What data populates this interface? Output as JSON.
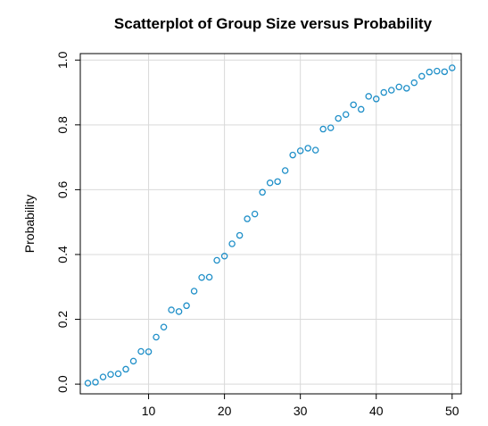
{
  "chart_data": {
    "type": "scatter",
    "title": "Scatterplot of Group Size versus Probability",
    "xlabel": "",
    "ylabel": "Probability",
    "xlim": [
      1,
      51.2
    ],
    "ylim": [
      -0.03,
      1.02
    ],
    "xticks": [
      10,
      20,
      30,
      40,
      50
    ],
    "yticks": [
      0.0,
      0.2,
      0.4,
      0.6,
      0.8,
      1.0
    ],
    "xtick_labels": [
      "10",
      "20",
      "30",
      "40",
      "50"
    ],
    "ytick_labels": [
      "0.0",
      "0.2",
      "0.4",
      "0.6",
      "0.8",
      "1.0"
    ],
    "grid": true,
    "point_color": "#1f8fc8",
    "points": [
      {
        "x": 2,
        "y": 0.003
      },
      {
        "x": 3,
        "y": 0.006
      },
      {
        "x": 4,
        "y": 0.022
      },
      {
        "x": 5,
        "y": 0.03
      },
      {
        "x": 6,
        "y": 0.032
      },
      {
        "x": 7,
        "y": 0.046
      },
      {
        "x": 8,
        "y": 0.071
      },
      {
        "x": 9,
        "y": 0.101
      },
      {
        "x": 10,
        "y": 0.1
      },
      {
        "x": 11,
        "y": 0.145
      },
      {
        "x": 12,
        "y": 0.176
      },
      {
        "x": 13,
        "y": 0.229
      },
      {
        "x": 14,
        "y": 0.224
      },
      {
        "x": 15,
        "y": 0.242
      },
      {
        "x": 16,
        "y": 0.287
      },
      {
        "x": 17,
        "y": 0.329
      },
      {
        "x": 18,
        "y": 0.33
      },
      {
        "x": 19,
        "y": 0.382
      },
      {
        "x": 20,
        "y": 0.395
      },
      {
        "x": 21,
        "y": 0.433
      },
      {
        "x": 22,
        "y": 0.459
      },
      {
        "x": 23,
        "y": 0.51
      },
      {
        "x": 24,
        "y": 0.525
      },
      {
        "x": 25,
        "y": 0.592
      },
      {
        "x": 26,
        "y": 0.621
      },
      {
        "x": 27,
        "y": 0.625
      },
      {
        "x": 28,
        "y": 0.659
      },
      {
        "x": 29,
        "y": 0.707
      },
      {
        "x": 30,
        "y": 0.72
      },
      {
        "x": 31,
        "y": 0.728
      },
      {
        "x": 32,
        "y": 0.722
      },
      {
        "x": 33,
        "y": 0.787
      },
      {
        "x": 34,
        "y": 0.791
      },
      {
        "x": 35,
        "y": 0.82
      },
      {
        "x": 36,
        "y": 0.832
      },
      {
        "x": 37,
        "y": 0.862
      },
      {
        "x": 38,
        "y": 0.848
      },
      {
        "x": 39,
        "y": 0.888
      },
      {
        "x": 40,
        "y": 0.88
      },
      {
        "x": 41,
        "y": 0.9
      },
      {
        "x": 42,
        "y": 0.907
      },
      {
        "x": 43,
        "y": 0.917
      },
      {
        "x": 44,
        "y": 0.913
      },
      {
        "x": 45,
        "y": 0.93
      },
      {
        "x": 46,
        "y": 0.95
      },
      {
        "x": 47,
        "y": 0.963
      },
      {
        "x": 48,
        "y": 0.966
      },
      {
        "x": 49,
        "y": 0.964
      },
      {
        "x": 50,
        "y": 0.976
      }
    ]
  }
}
